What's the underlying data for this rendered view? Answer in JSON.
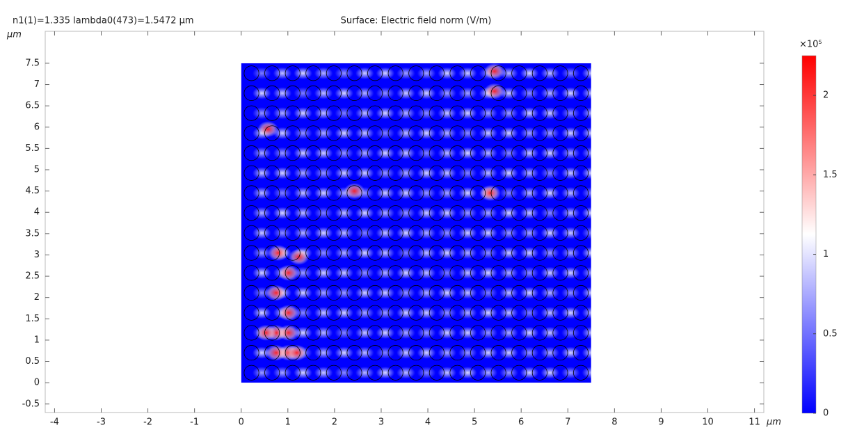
{
  "chart_data": {
    "type": "surface",
    "subtitle": "n1(1)=1.335 lambda0(473)=1.5472 µm",
    "title": "Surface: Electric field norm (V/m)",
    "x_unit": "µm",
    "y_unit": "µm",
    "xlim": [
      -4.2,
      11.2
    ],
    "ylim": [
      -0.7,
      8.25
    ],
    "xticks": [
      -4,
      -3,
      -2,
      -1,
      0,
      1,
      2,
      3,
      4,
      5,
      6,
      7,
      8,
      9,
      10,
      11
    ],
    "yticks": [
      -0.5,
      0,
      0.5,
      1,
      1.5,
      2,
      2.5,
      3,
      3.5,
      4,
      4.5,
      5,
      5.5,
      6,
      6.5,
      7,
      7.5
    ],
    "domain": {
      "x": [
        0,
        7.5
      ],
      "y": [
        0,
        7.5
      ]
    },
    "colorbar": {
      "label": "×10⁵",
      "lim": [
        0,
        2.25
      ],
      "ticks": [
        0,
        0.5,
        1,
        1.5,
        2
      ],
      "colors": [
        "#0000ff",
        "#ffffff",
        "#ff0000"
      ]
    }
  }
}
